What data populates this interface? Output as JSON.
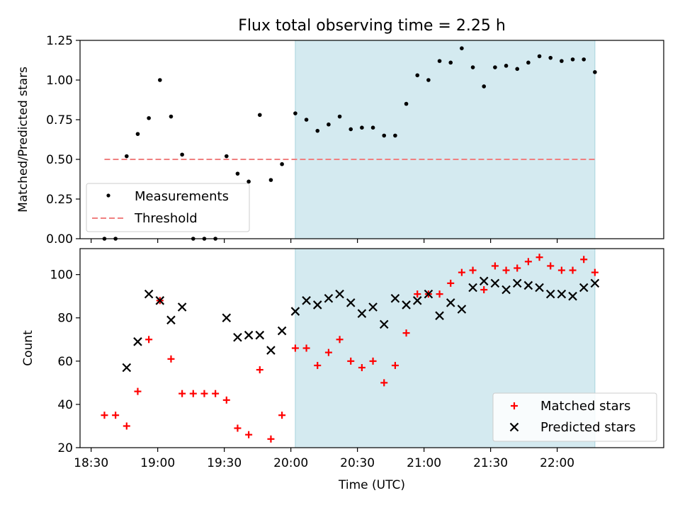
{
  "chart_data": [
    {
      "type": "scatter",
      "title": "Flux total observing time = 2.25 h",
      "xlabel": "",
      "ylabel": "Matched/Predicted stars",
      "ylim": [
        0,
        1.25
      ],
      "yticks": [
        "0.00",
        "0.25",
        "0.50",
        "0.75",
        "1.00",
        "1.25"
      ],
      "xlim": [
        "18:25",
        "22:48"
      ],
      "highlight": {
        "x_start": "20:02",
        "x_end": "22:17",
        "color": "#d4eaf0"
      },
      "legend_position": "lower-left",
      "series": [
        {
          "name": "Measurements",
          "marker": "dot",
          "color": "#000000",
          "x": [
            "18:36",
            "18:41",
            "18:46",
            "18:51",
            "18:56",
            "19:01",
            "19:06",
            "19:11",
            "19:16",
            "19:21",
            "19:26",
            "19:31",
            "19:36",
            "19:41",
            "19:46",
            "19:51",
            "19:56",
            "20:02",
            "20:07",
            "20:12",
            "20:17",
            "20:22",
            "20:27",
            "20:32",
            "20:37",
            "20:42",
            "20:47",
            "20:52",
            "20:57",
            "21:02",
            "21:07",
            "21:12",
            "21:17",
            "21:22",
            "21:27",
            "21:32",
            "21:37",
            "21:42",
            "21:47",
            "21:52",
            "21:57",
            "22:02",
            "22:07",
            "22:12",
            "22:17"
          ],
          "y": [
            0.0,
            0.0,
            0.52,
            0.66,
            0.76,
            1.0,
            0.77,
            0.53,
            0.0,
            0.0,
            0.0,
            0.52,
            0.41,
            0.36,
            0.78,
            0.37,
            0.47,
            0.79,
            0.75,
            0.68,
            0.72,
            0.77,
            0.69,
            0.7,
            0.7,
            0.65,
            0.65,
            0.85,
            1.03,
            1.0,
            1.12,
            1.11,
            1.2,
            1.08,
            0.96,
            1.08,
            1.09,
            1.07,
            1.11,
            1.15,
            1.14,
            1.12,
            1.13,
            1.13,
            1.05
          ]
        },
        {
          "name": "Threshold",
          "marker": "dashed-line",
          "color": "#f08080",
          "x": [
            "18:36",
            "22:17"
          ],
          "y": [
            0.5,
            0.5
          ]
        }
      ]
    },
    {
      "type": "scatter",
      "title": "",
      "xlabel": "Time (UTC)",
      "ylabel": "Count",
      "ylim": [
        20,
        112
      ],
      "yticks": [
        "20",
        "40",
        "60",
        "80",
        "100"
      ],
      "xlim": [
        "18:25",
        "22:48"
      ],
      "xticks": [
        "18:30",
        "19:00",
        "19:30",
        "20:00",
        "20:30",
        "21:00",
        "21:30",
        "22:00"
      ],
      "highlight": {
        "x_start": "20:02",
        "x_end": "22:17",
        "color": "#d4eaf0"
      },
      "legend_position": "lower-right",
      "series": [
        {
          "name": "Matched stars",
          "marker": "plus",
          "color": "#ff0000",
          "x": [
            "18:36",
            "18:41",
            "18:46",
            "18:51",
            "18:56",
            "19:01",
            "19:06",
            "19:11",
            "19:16",
            "19:21",
            "19:26",
            "19:31",
            "19:36",
            "19:41",
            "19:46",
            "19:51",
            "19:56",
            "20:02",
            "20:07",
            "20:12",
            "20:17",
            "20:22",
            "20:27",
            "20:32",
            "20:37",
            "20:42",
            "20:47",
            "20:52",
            "20:57",
            "21:02",
            "21:07",
            "21:12",
            "21:17",
            "21:22",
            "21:27",
            "21:32",
            "21:37",
            "21:42",
            "21:47",
            "21:52",
            "21:57",
            "22:02",
            "22:07",
            "22:12",
            "22:17"
          ],
          "y": [
            35,
            35,
            30,
            46,
            70,
            88,
            61,
            45,
            45,
            45,
            45,
            42,
            29,
            26,
            56,
            24,
            35,
            66,
            66,
            58,
            64,
            70,
            60,
            57,
            60,
            50,
            58,
            73,
            91,
            91,
            91,
            96,
            101,
            102,
            93,
            104,
            102,
            103,
            106,
            108,
            104,
            102,
            102,
            107,
            101
          ]
        },
        {
          "name": "Predicted stars",
          "marker": "x",
          "color": "#000000",
          "x": [
            "18:46",
            "18:51",
            "18:56",
            "19:01",
            "19:06",
            "19:11",
            "19:31",
            "19:36",
            "19:41",
            "19:46",
            "19:51",
            "19:56",
            "20:02",
            "20:07",
            "20:12",
            "20:17",
            "20:22",
            "20:27",
            "20:32",
            "20:37",
            "20:42",
            "20:47",
            "20:52",
            "20:57",
            "21:02",
            "21:07",
            "21:12",
            "21:17",
            "21:22",
            "21:27",
            "21:32",
            "21:37",
            "21:42",
            "21:47",
            "21:52",
            "21:57",
            "22:02",
            "22:07",
            "22:12",
            "22:17"
          ],
          "y": [
            57,
            69,
            91,
            88,
            79,
            85,
            80,
            71,
            72,
            72,
            65,
            74,
            83,
            88,
            86,
            89,
            91,
            87,
            82,
            85,
            77,
            89,
            86,
            88,
            91,
            81,
            87,
            84,
            94,
            97,
            96,
            93,
            96,
            95,
            94,
            91,
            91,
            90,
            94,
            96
          ]
        }
      ]
    }
  ]
}
